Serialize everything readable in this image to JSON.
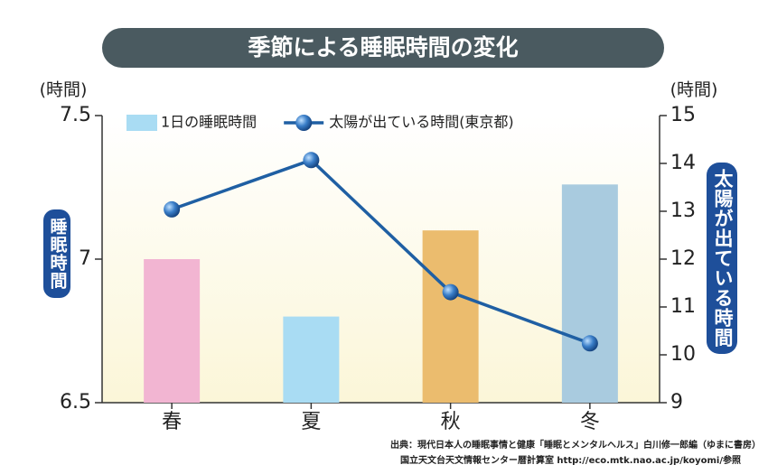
{
  "chart_data": {
    "type": "bar",
    "title": "季節による睡眠時間の変化",
    "y_unit": "(時間)",
    "y2_unit": "(時間)",
    "y_label": "睡眠時間",
    "y2_label": "太陽が出ている時間",
    "categories": [
      "春",
      "夏",
      "秋",
      "冬"
    ],
    "series": [
      {
        "name": "1日の睡眠時間",
        "type": "bar",
        "color": "#a9dcf3",
        "colors": [
          "#f2b5d2",
          "#a9dcf3",
          "#ebbc6e",
          "#a9cbdf"
        ],
        "values": [
          7.0,
          6.8,
          7.1,
          7.26
        ]
      },
      {
        "name": "太陽が出ている時間(東京都)",
        "type": "line",
        "axis": "y2",
        "color": "#1f5fa3",
        "values": [
          13.04,
          14.07,
          11.31,
          10.24
        ]
      }
    ],
    "ylim": [
      6.5,
      7.5
    ],
    "yticks": [
      6.5,
      7,
      7.5
    ],
    "y2lim": [
      9,
      15
    ],
    "y2ticks": [
      9,
      10,
      11,
      12,
      13,
      14,
      15
    ],
    "legend": "top",
    "source": [
      "出典：現代日本人の睡眠事情と健康「睡眠とメンタルヘルス」白川修一郎編（ゆまに書房）",
      "国立天文台天文情報センター暦計算室 http://eco.mtk.nao.ac.jp/koyomi/参照"
    ]
  }
}
